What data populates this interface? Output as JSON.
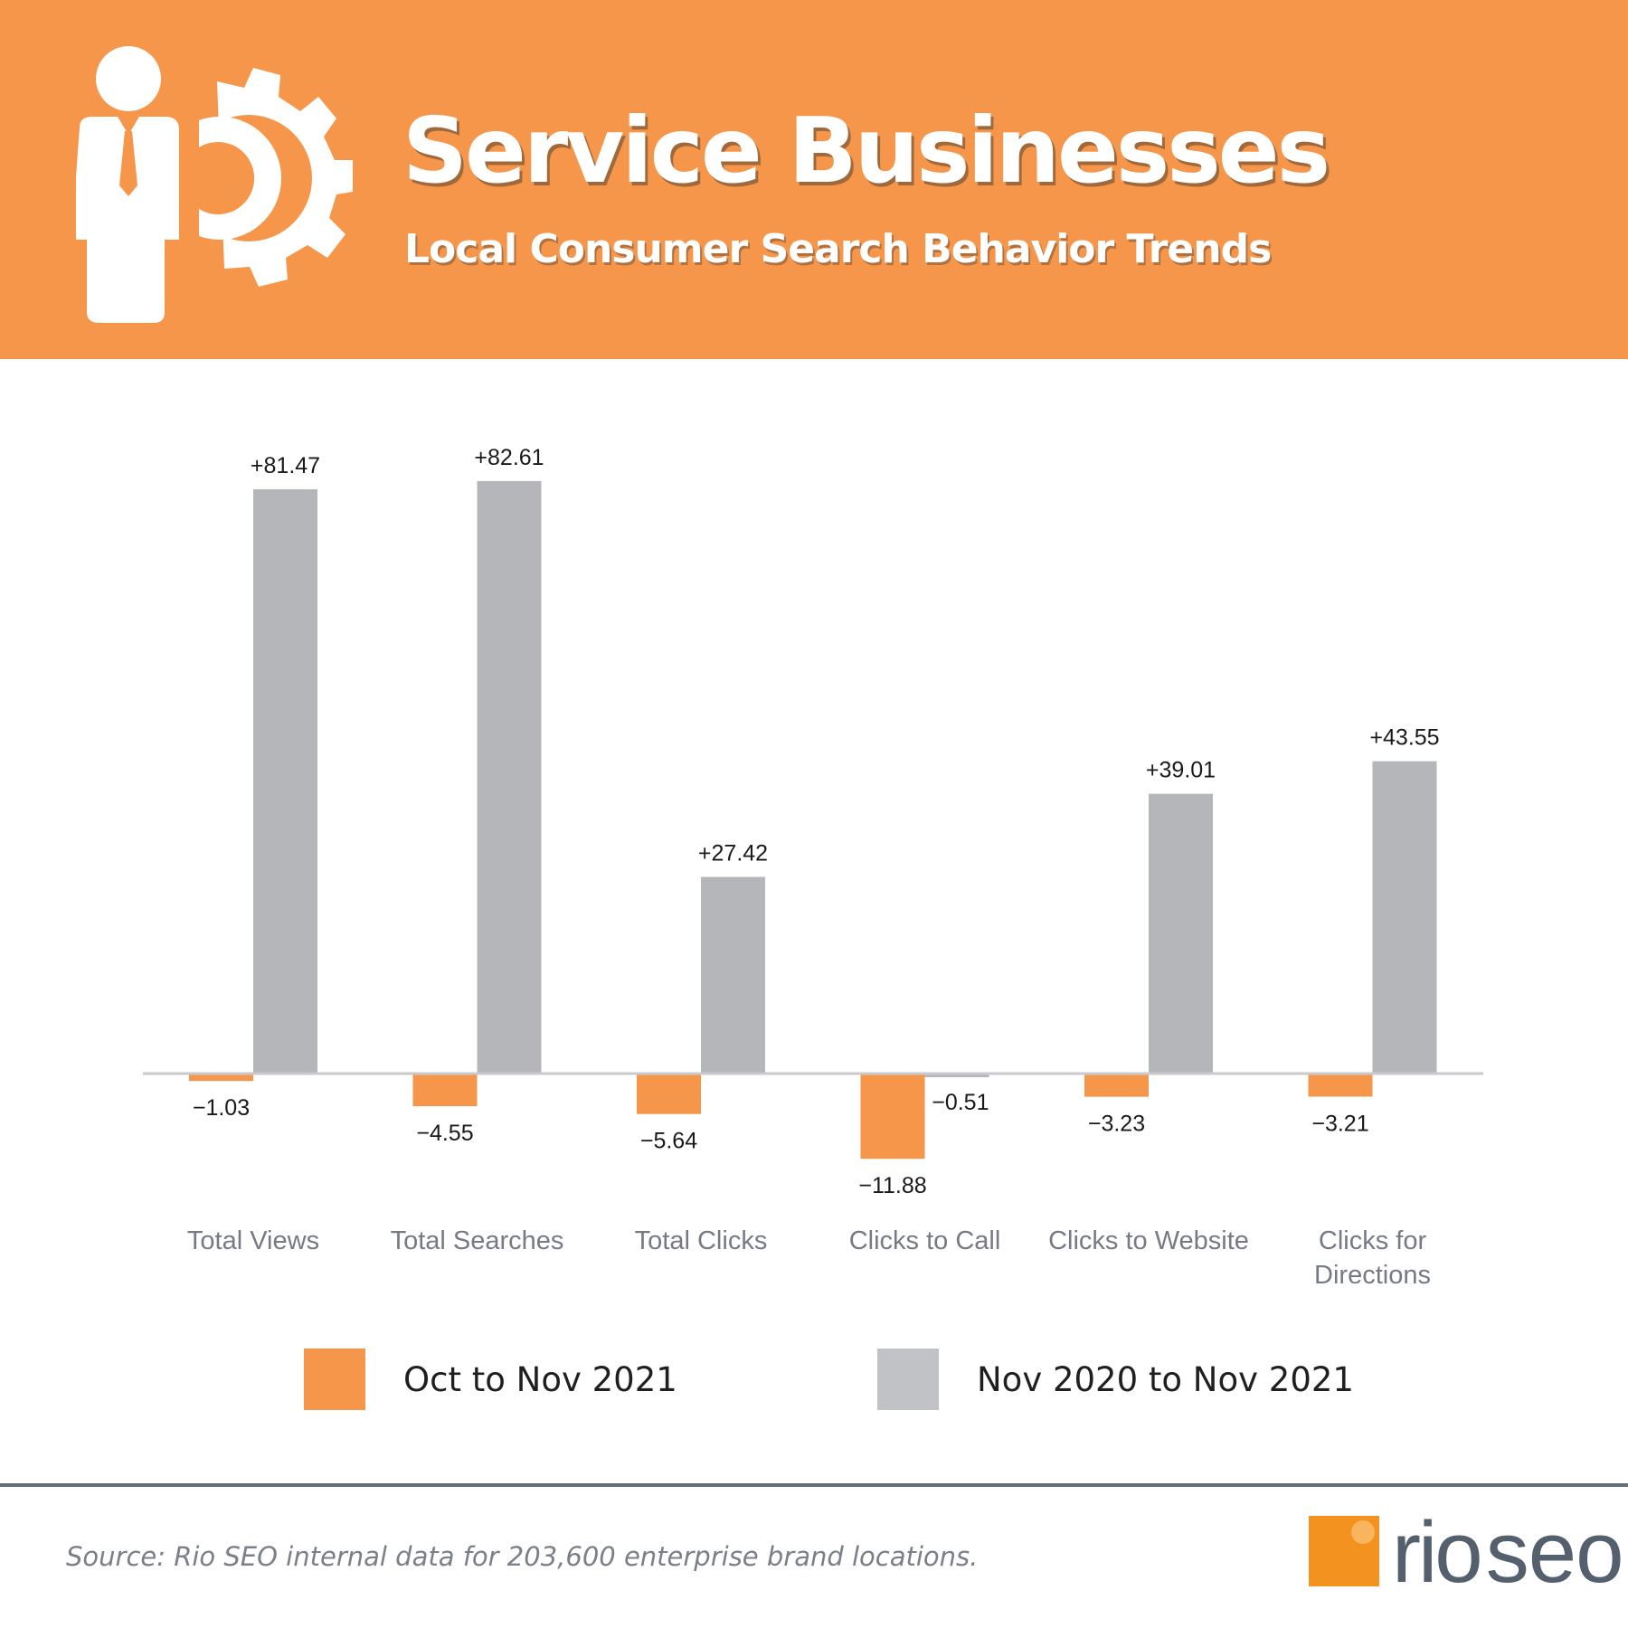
{
  "header": {
    "title": "Service Businesses",
    "subtitle": "Local Consumer Search Behavior Trends",
    "icon": "businessman-gear-icon"
  },
  "colors": {
    "banner": "#F6964B",
    "series1": "#F6964B",
    "series2": "#B5B6BA",
    "axis": "#C8CACE"
  },
  "chart_data": {
    "type": "bar",
    "title": "",
    "xlabel": "",
    "ylabel": "",
    "ylim": [
      -12,
      84
    ],
    "grid": false,
    "legend": "bottom",
    "categories": [
      "Total Views",
      "Total Searches",
      "Total Clicks",
      "Clicks to Call",
      "Clicks to Website",
      "Clicks for Directions"
    ],
    "series": [
      {
        "name": "Oct to Nov 2021",
        "values": [
          -1.03,
          -4.55,
          -5.64,
          -11.88,
          -3.23,
          -3.21
        ],
        "labels": [
          "−1.03",
          "−4.55",
          "−5.64",
          "−11.88",
          "−3.23",
          "−3.21"
        ]
      },
      {
        "name": "Nov 2020 to Nov 2021",
        "values": [
          81.47,
          82.61,
          27.42,
          -0.51,
          39.01,
          43.55
        ],
        "labels": [
          "+81.47",
          "+82.61",
          "+27.42",
          "−0.51",
          "+39.01",
          "+43.55"
        ]
      }
    ]
  },
  "footer": {
    "source": "Source: Rio SEO internal data for 203,600 enterprise brand locations.",
    "logo_rio": "rio",
    "logo_seo": "seo"
  }
}
